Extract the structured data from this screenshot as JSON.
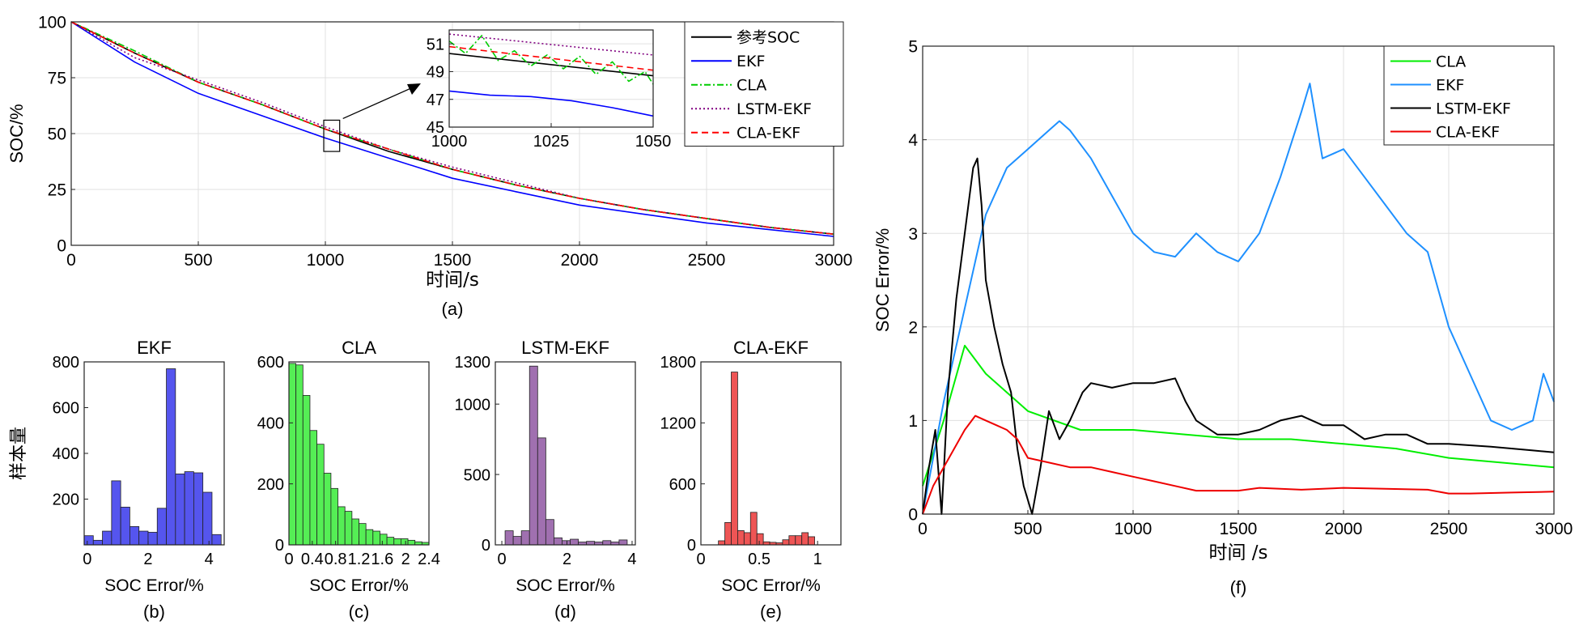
{
  "chart_data": [
    {
      "id": "a",
      "type": "line",
      "caption": "(a)",
      "xlabel": "时间/s",
      "ylabel": "SOC/%",
      "xlim": [
        0,
        3000
      ],
      "ylim": [
        0,
        100
      ],
      "xticks": [
        0,
        500,
        1000,
        1500,
        2000,
        2500,
        3000
      ],
      "yticks": [
        0,
        25,
        50,
        75,
        100
      ],
      "grid": true,
      "legend_position": "top-right",
      "series": [
        {
          "name": "参考SOC",
          "color": "#000000",
          "style": "solid",
          "x": [
            0,
            250,
            500,
            750,
            1000,
            1250,
            1500,
            1750,
            2000,
            2250,
            2500,
            2750,
            3000
          ],
          "y": [
            100,
            86,
            73,
            63,
            52,
            42,
            34,
            27,
            21,
            16,
            12,
            8,
            5
          ]
        },
        {
          "name": "EKF",
          "color": "#0000ff",
          "style": "solid",
          "x": [
            0,
            250,
            500,
            750,
            1000,
            1250,
            1500,
            1750,
            2000,
            2250,
            2500,
            2750,
            3000
          ],
          "y": [
            100,
            82,
            68,
            58,
            48,
            39,
            30,
            24,
            18,
            14,
            10,
            7,
            4
          ]
        },
        {
          "name": "CLA",
          "color": "#00cc00",
          "style": "dashdot",
          "x": [
            0,
            250,
            500,
            750,
            1000,
            1250,
            1500,
            1750,
            2000,
            2250,
            2500,
            2750,
            3000
          ],
          "y": [
            100,
            87,
            73,
            63,
            52,
            43,
            34,
            27,
            21,
            16,
            12,
            8,
            5
          ]
        },
        {
          "name": "LSTM-EKF",
          "color": "#800080",
          "style": "dotted",
          "x": [
            0,
            250,
            500,
            750,
            1000,
            1250,
            1500,
            1750,
            2000,
            2250,
            2500,
            2750,
            3000
          ],
          "y": [
            100,
            84,
            74,
            64,
            53,
            43,
            35,
            28,
            21,
            16,
            12,
            8,
            5
          ]
        },
        {
          "name": "CLA-EKF",
          "color": "#ff0000",
          "style": "dashed",
          "x": [
            0,
            250,
            500,
            750,
            1000,
            1250,
            1500,
            1750,
            2000,
            2250,
            2500,
            2750,
            3000
          ],
          "y": [
            100,
            86,
            73,
            63,
            52,
            43,
            34,
            27,
            21,
            16,
            12,
            8,
            5
          ]
        }
      ],
      "inset": {
        "xlim": [
          1000,
          1050
        ],
        "ylim": [
          45,
          52
        ],
        "xticks": [
          1000,
          1025,
          1050
        ],
        "yticks": [
          45,
          47,
          49,
          51
        ],
        "series": [
          {
            "name": "参考SOC",
            "x": [
              1000,
              1050
            ],
            "y": [
              50.3,
              48.7
            ]
          },
          {
            "name": "EKF",
            "x": [
              1000,
              1010,
              1020,
              1030,
              1040,
              1050
            ],
            "y": [
              47.6,
              47.3,
              47.2,
              46.9,
              46.4,
              45.8
            ]
          },
          {
            "name": "CLA",
            "x": [
              1000,
              1004,
              1008,
              1012,
              1016,
              1020,
              1024,
              1028,
              1032,
              1036,
              1040,
              1044,
              1048,
              1050
            ],
            "y": [
              51.2,
              50.3,
              51.6,
              49.8,
              50.5,
              49.4,
              50.2,
              49.2,
              50.1,
              48.8,
              49.7,
              48.3,
              49.0,
              48.1
            ]
          },
          {
            "name": "LSTM-EKF",
            "x": [
              1000,
              1050
            ],
            "y": [
              51.7,
              50.2
            ]
          },
          {
            "name": "CLA-EKF",
            "x": [
              1000,
              1050
            ],
            "y": [
              50.8,
              49.1
            ]
          }
        ]
      }
    },
    {
      "id": "b",
      "type": "bar",
      "title": "EKF",
      "caption": "(b)",
      "xlabel": "SOC Error/%",
      "ylabel": "样本量",
      "color": "#5555ee",
      "xlim": [
        -0.1,
        4.5
      ],
      "ylim": [
        0,
        800
      ],
      "xticks": [
        0,
        2,
        4
      ],
      "yticks": [
        200,
        400,
        600,
        800
      ],
      "bin_width": 0.3,
      "bin_start": -0.1,
      "values": [
        40,
        20,
        60,
        280,
        165,
        80,
        60,
        55,
        160,
        770,
        310,
        320,
        315,
        230,
        45
      ]
    },
    {
      "id": "c",
      "type": "bar",
      "title": "CLA",
      "caption": "(c)",
      "xlabel": "SOC Error/%",
      "color": "#55ee55",
      "xlim": [
        0,
        2.4
      ],
      "ylim": [
        0,
        600
      ],
      "xticks": [
        0,
        1.2,
        2.4
      ],
      "xtick_labels": [
        "0",
        "0.4",
        "0.8",
        "1.2",
        "1.6",
        "2",
        "2.4"
      ],
      "xtick_values": [
        0,
        0.4,
        0.8,
        1.2,
        1.6,
        2.0,
        2.4
      ],
      "yticks": [
        0,
        200,
        400,
        600
      ],
      "bin_width": 0.12,
      "bin_start": 0,
      "values": [
        595,
        590,
        490,
        375,
        330,
        235,
        185,
        125,
        110,
        85,
        70,
        50,
        45,
        35,
        25,
        20,
        20,
        15,
        10,
        8
      ]
    },
    {
      "id": "d",
      "type": "bar",
      "title": "LSTM-EKF",
      "caption": "(d)",
      "xlabel": "SOC Error/%",
      "color": "#a070b0",
      "xlim": [
        -0.2,
        4.1
      ],
      "ylim": [
        0,
        1300
      ],
      "xticks": [
        0,
        2,
        4
      ],
      "yticks": [
        0,
        500,
        1000,
        1300
      ],
      "bin_width": 0.25,
      "bin_start": 0.1,
      "values": [
        100,
        60,
        100,
        1270,
        760,
        180,
        50,
        30,
        40,
        20,
        25,
        20,
        30,
        20,
        35
      ]
    },
    {
      "id": "e",
      "type": "bar",
      "title": "CLA-EKF",
      "caption": "(e)",
      "xlabel": "SOC Error/%",
      "color": "#ee5555",
      "xlim": [
        0,
        1.2
      ],
      "ylim": [
        0,
        1800
      ],
      "xticks": [
        0,
        0.5,
        1
      ],
      "yticks": [
        0,
        600,
        1200,
        1800
      ],
      "bin_width": 0.055,
      "bin_start": 0.15,
      "values": [
        40,
        220,
        1700,
        140,
        120,
        320,
        110,
        30,
        25,
        20,
        50,
        90,
        90,
        120,
        80
      ]
    },
    {
      "id": "f",
      "type": "line",
      "caption": "(f)",
      "xlabel": "时间 /s",
      "ylabel": "SOC Error/%",
      "xlim": [
        0,
        3000
      ],
      "ylim": [
        0,
        5
      ],
      "xticks": [
        0,
        500,
        1000,
        1500,
        2000,
        2500,
        3000
      ],
      "yticks": [
        0,
        1,
        2,
        3,
        4,
        5
      ],
      "grid": true,
      "legend_position": "top-right",
      "series": [
        {
          "name": "CLA",
          "color": "#00ee00",
          "x": [
            0,
            100,
            200,
            300,
            500,
            750,
            1000,
            1250,
            1500,
            1750,
            2000,
            2250,
            2500,
            2750,
            3000
          ],
          "y": [
            0.3,
            1.0,
            1.8,
            1.5,
            1.1,
            0.9,
            0.9,
            0.85,
            0.8,
            0.8,
            0.75,
            0.7,
            0.6,
            0.55,
            0.5
          ]
        },
        {
          "name": "EKF",
          "color": "#1e90ff",
          "x": [
            0,
            100,
            200,
            300,
            400,
            500,
            600,
            650,
            700,
            800,
            900,
            1000,
            1100,
            1200,
            1300,
            1400,
            1500,
            1600,
            1700,
            1800,
            1840,
            1900,
            2000,
            2100,
            2200,
            2300,
            2400,
            2450,
            2500,
            2600,
            2700,
            2800,
            2900,
            2950,
            3000
          ],
          "y": [
            0,
            1.2,
            2.2,
            3.2,
            3.7,
            3.9,
            4.1,
            4.2,
            4.1,
            3.8,
            3.4,
            3.0,
            2.8,
            2.75,
            3.0,
            2.8,
            2.7,
            3.0,
            3.6,
            4.3,
            4.6,
            3.8,
            3.9,
            3.6,
            3.3,
            3.0,
            2.8,
            2.4,
            2.0,
            1.5,
            1.0,
            0.9,
            1.0,
            1.5,
            1.2
          ]
        },
        {
          "name": "LSTM-EKF",
          "color": "#000000",
          "x": [
            0,
            30,
            60,
            90,
            120,
            160,
            200,
            240,
            260,
            280,
            300,
            340,
            380,
            420,
            450,
            480,
            520,
            560,
            600,
            650,
            700,
            760,
            800,
            900,
            1000,
            1100,
            1200,
            1250,
            1300,
            1400,
            1500,
            1600,
            1700,
            1800,
            1900,
            2000,
            2100,
            2200,
            2300,
            2400,
            2500,
            2700,
            2900,
            3000
          ],
          "y": [
            0,
            0.5,
            0.9,
            0.0,
            1.3,
            2.3,
            3.0,
            3.7,
            3.8,
            3.3,
            2.5,
            2.0,
            1.6,
            1.3,
            0.7,
            0.3,
            0.0,
            0.5,
            1.1,
            0.8,
            1.0,
            1.3,
            1.4,
            1.35,
            1.4,
            1.4,
            1.45,
            1.2,
            1.0,
            0.85,
            0.85,
            0.9,
            1.0,
            1.05,
            0.95,
            0.95,
            0.8,
            0.85,
            0.85,
            0.75,
            0.75,
            0.72,
            0.68,
            0.66
          ]
        },
        {
          "name": "CLA-EKF",
          "color": "#ee0000",
          "x": [
            0,
            50,
            100,
            150,
            200,
            250,
            300,
            350,
            400,
            450,
            500,
            600,
            700,
            800,
            900,
            1000,
            1100,
            1200,
            1300,
            1400,
            1500,
            1600,
            1700,
            1800,
            2000,
            2200,
            2400,
            2500,
            2600,
            2800,
            3000
          ],
          "y": [
            0,
            0.3,
            0.5,
            0.7,
            0.9,
            1.05,
            1.0,
            0.95,
            0.9,
            0.8,
            0.6,
            0.55,
            0.5,
            0.5,
            0.45,
            0.4,
            0.35,
            0.3,
            0.25,
            0.25,
            0.25,
            0.28,
            0.27,
            0.26,
            0.28,
            0.27,
            0.26,
            0.22,
            0.22,
            0.23,
            0.24
          ]
        }
      ]
    }
  ]
}
